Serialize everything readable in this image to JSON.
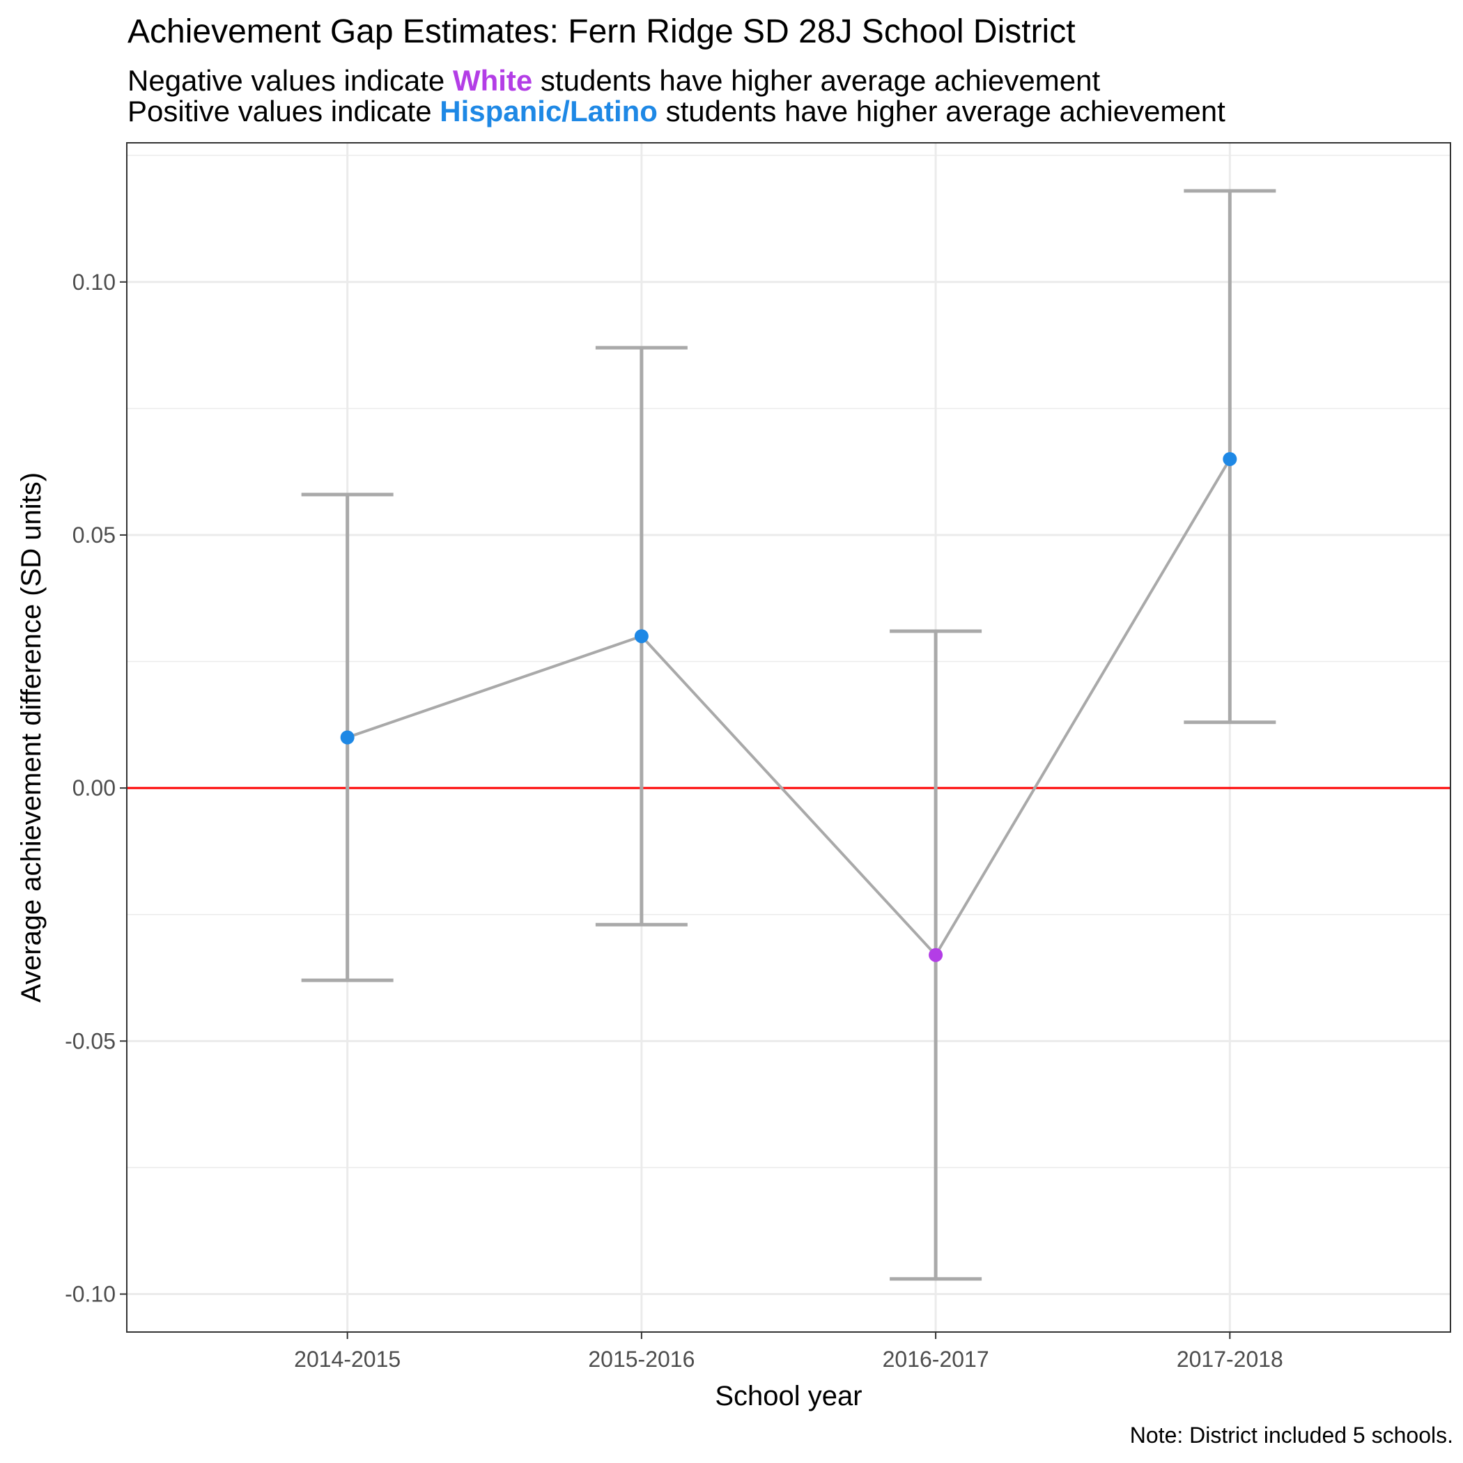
{
  "colors": {
    "white_group": "#b33de6",
    "hispanic_group": "#1e88e5",
    "errorbar": "#a9a9a9",
    "zero_line": "#ff0000",
    "grid": "#ebebeb"
  },
  "chart_data": {
    "type": "line",
    "title": "Achievement Gap Estimates: Fern Ridge SD 28J School District",
    "subtitle": {
      "line1_prefix": "Negative values indicate ",
      "line1_keyword": "White",
      "line1_suffix": "  students have higher average achievement",
      "line2_prefix": "Positive values indicate  ",
      "line2_keyword": "Hispanic/Latino",
      "line2_suffix": "  students have higher average achievement"
    },
    "xlabel": "School year",
    "ylabel": "Average achievement difference (SD units)",
    "caption": "Note: District included 5 schools.",
    "categories": [
      "2014-2015",
      "2015-2016",
      "2016-2017",
      "2017-2018"
    ],
    "values": [
      0.01,
      0.03,
      -0.033,
      0.065
    ],
    "ci_lower": [
      -0.038,
      -0.027,
      -0.097,
      0.013
    ],
    "ci_upper": [
      0.058,
      0.087,
      0.031,
      0.118
    ],
    "point_group": [
      "Hispanic/Latino",
      "Hispanic/Latino",
      "White",
      "Hispanic/Latino"
    ],
    "ylim": [
      -0.1075,
      0.1275
    ],
    "yticks": [
      -0.1,
      -0.05,
      0.0,
      0.05,
      0.1
    ],
    "ytick_labels": [
      "-0.10",
      "-0.05",
      "0.00",
      "0.05",
      "0.10"
    ],
    "reference_line": 0,
    "grid": true,
    "legend": "none"
  }
}
